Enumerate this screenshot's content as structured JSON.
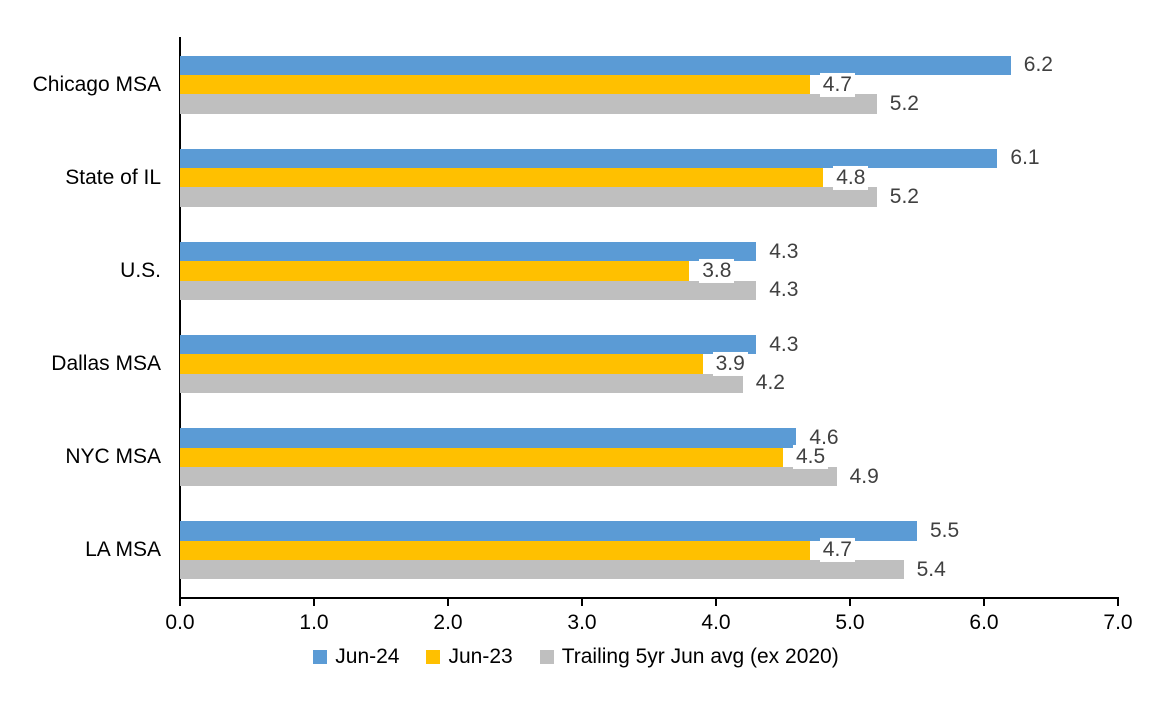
{
  "chart_data": {
    "type": "bar",
    "orientation": "horizontal",
    "title": "",
    "xlabel": "",
    "ylabel": "",
    "categories": [
      "Chicago MSA",
      "State of IL",
      "U.S.",
      "Dallas MSA",
      "NYC MSA",
      "LA MSA"
    ],
    "series": [
      {
        "name": "Jun-24",
        "color": "#5B9BD5",
        "values": [
          6.2,
          6.1,
          4.3,
          4.3,
          4.6,
          5.5
        ]
      },
      {
        "name": "Jun-23",
        "color": "#FFC000",
        "values": [
          4.7,
          4.8,
          3.8,
          3.9,
          4.5,
          4.7
        ]
      },
      {
        "name": "Trailing 5yr Jun avg (ex 2020)",
        "color": "#BFBFBF",
        "values": [
          5.2,
          5.2,
          4.3,
          4.2,
          4.9,
          5.4
        ]
      }
    ],
    "xlim": [
      0.0,
      7.0
    ],
    "x_ticks": [
      "0.0",
      "1.0",
      "2.0",
      "3.0",
      "4.0",
      "5.0",
      "6.0",
      "7.0"
    ],
    "grid": false,
    "data_labels": true,
    "data_label_format": "0.0",
    "legend_position": "bottom",
    "colors": {
      "axis": "#000000",
      "category_text": "#000000",
      "tick_text": "#000000",
      "data_label_text": "#404040",
      "background": "#ffffff"
    }
  }
}
